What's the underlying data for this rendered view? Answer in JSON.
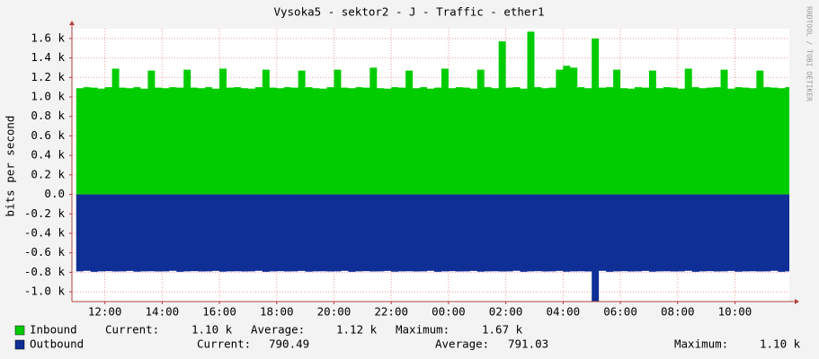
{
  "chart_data": {
    "type": "area",
    "title": "Vysoka5 - sektor2 - J - Traffic - ether1",
    "y_label": "bits per second",
    "watermark": "RRDTOOL / TOBI OETIKER",
    "xlim": [
      -1.15,
      23.9
    ],
    "xticks": [
      {
        "value": 0,
        "label": "12:00"
      },
      {
        "value": 2,
        "label": "14:00"
      },
      {
        "value": 4,
        "label": "16:00"
      },
      {
        "value": 6,
        "label": "18:00"
      },
      {
        "value": 8,
        "label": "20:00"
      },
      {
        "value": 10,
        "label": "22:00"
      },
      {
        "value": 12,
        "label": "00:00"
      },
      {
        "value": 14,
        "label": "02:00"
      },
      {
        "value": 16,
        "label": "04:00"
      },
      {
        "value": 18,
        "label": "06:00"
      },
      {
        "value": 20,
        "label": "08:00"
      },
      {
        "value": 22,
        "label": "10:00"
      }
    ],
    "ylim": [
      -1100,
      1700
    ],
    "yticks": [
      {
        "value": -1000,
        "label": "-1.0 k"
      },
      {
        "value": -800,
        "label": "-0.8 k"
      },
      {
        "value": -600,
        "label": "-0.6 k"
      },
      {
        "value": -400,
        "label": "-0.4 k"
      },
      {
        "value": -200,
        "label": "-0.2 k"
      },
      {
        "value": 0,
        "label": "0.0"
      },
      {
        "value": 200,
        "label": "0.2 k"
      },
      {
        "value": 400,
        "label": "0.4 k"
      },
      {
        "value": 600,
        "label": "0.6 k"
      },
      {
        "value": 800,
        "label": "0.8 k"
      },
      {
        "value": 1000,
        "label": "1.0 k"
      },
      {
        "value": 1200,
        "label": "1.2 k"
      },
      {
        "value": 1400,
        "label": "1.4 k"
      },
      {
        "value": 1600,
        "label": "1.6 k"
      }
    ],
    "grid": true,
    "x": [
      -1,
      -0.75,
      -0.5,
      -0.25,
      0,
      0.25,
      0.5,
      0.75,
      1,
      1.25,
      1.5,
      1.75,
      2,
      2.25,
      2.5,
      2.75,
      3,
      3.25,
      3.5,
      3.75,
      4,
      4.25,
      4.5,
      4.75,
      5,
      5.25,
      5.5,
      5.75,
      6,
      6.25,
      6.5,
      6.75,
      7,
      7.25,
      7.5,
      7.75,
      8,
      8.25,
      8.5,
      8.75,
      9,
      9.25,
      9.5,
      9.75,
      10,
      10.25,
      10.5,
      10.75,
      11,
      11.25,
      11.5,
      11.75,
      12,
      12.25,
      12.5,
      12.75,
      13,
      13.25,
      13.5,
      13.75,
      14,
      14.25,
      14.5,
      14.75,
      15,
      15.25,
      15.5,
      15.75,
      16,
      16.25,
      16.5,
      16.75,
      17,
      17.25,
      17.5,
      17.75,
      18,
      18.25,
      18.5,
      18.75,
      19,
      19.25,
      19.5,
      19.75,
      20,
      20.25,
      20.5,
      20.75,
      21,
      21.25,
      21.5,
      21.75,
      22,
      22.25,
      22.5,
      22.75,
      23,
      23.25,
      23.5,
      23.75
    ],
    "series": [
      {
        "name": "Inbound",
        "color": "#00cc00",
        "values": [
          1090,
          1100,
          1095,
          1085,
          1100,
          1290,
          1095,
          1090,
          1100,
          1085,
          1270,
          1095,
          1090,
          1100,
          1095,
          1280,
          1095,
          1090,
          1100,
          1085,
          1290,
          1095,
          1100,
          1090,
          1085,
          1100,
          1280,
          1095,
          1090,
          1100,
          1095,
          1270,
          1100,
          1090,
          1085,
          1100,
          1280,
          1095,
          1090,
          1100,
          1095,
          1300,
          1090,
          1085,
          1100,
          1095,
          1270,
          1090,
          1100,
          1085,
          1095,
          1290,
          1090,
          1100,
          1095,
          1085,
          1280,
          1100,
          1090,
          1570,
          1095,
          1100,
          1085,
          1670,
          1100,
          1090,
          1095,
          1280,
          1320,
          1300,
          1100,
          1090,
          1600,
          1095,
          1100,
          1280,
          1090,
          1085,
          1100,
          1095,
          1270,
          1090,
          1100,
          1095,
          1085,
          1290,
          1100,
          1090,
          1095,
          1100,
          1280,
          1085,
          1100,
          1095,
          1090,
          1270,
          1100,
          1095,
          1090,
          1100
        ]
      },
      {
        "name": "Outbound",
        "color": "#0f2f96",
        "values": [
          -790,
          -785,
          -795,
          -790,
          -788,
          -792,
          -790,
          -786,
          -794,
          -790,
          -789,
          -791,
          -790,
          -785,
          -795,
          -790,
          -788,
          -792,
          -790,
          -786,
          -794,
          -790,
          -789,
          -791,
          -790,
          -785,
          -795,
          -790,
          -788,
          -792,
          -790,
          -786,
          -794,
          -790,
          -789,
          -791,
          -790,
          -785,
          -795,
          -790,
          -788,
          -792,
          -790,
          -786,
          -794,
          -790,
          -789,
          -791,
          -790,
          -785,
          -795,
          -790,
          -788,
          -792,
          -790,
          -786,
          -794,
          -790,
          -789,
          -791,
          -790,
          -785,
          -795,
          -790,
          -788,
          -792,
          -790,
          -786,
          -794,
          -790,
          -789,
          -791,
          -1100,
          -785,
          -795,
          -790,
          -788,
          -792,
          -790,
          -786,
          -794,
          -790,
          -789,
          -791,
          -790,
          -785,
          -795,
          -790,
          -788,
          -792,
          -790,
          -786,
          -794,
          -790,
          -789,
          -791,
          -790,
          -785,
          -795,
          -790
        ]
      }
    ],
    "legend_stats": [
      [
        "Current:",
        "1.10 k",
        "Average:",
        "1.12 k",
        "Maximum:",
        "1.67 k"
      ],
      [
        "Current:",
        "790.49",
        "Average:",
        "791.03",
        "Maximum:",
        "1.10 k"
      ]
    ]
  }
}
